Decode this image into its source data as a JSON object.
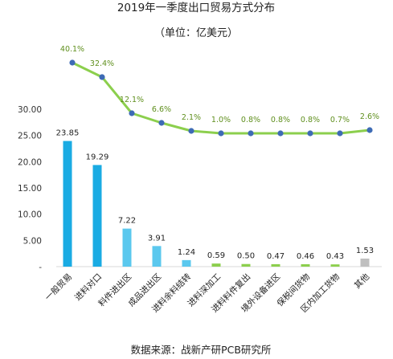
{
  "chart_data": {
    "type": "bar",
    "title": "2019年一季度出口贸易方式分布",
    "subtitle": "（单位：亿美元）",
    "source": "数据来源：战新产研PCB研究所",
    "ylim": [
      0,
      30
    ],
    "yticks": [
      "30.00",
      "25.00",
      "20.00",
      "15.00",
      "10.00",
      "5.00",
      "-"
    ],
    "categories": [
      "一般贸易",
      "进料对口",
      "料件进出区",
      "成品进出区",
      "进料余料结转",
      "进料深加工",
      "进料料件复出",
      "境外设备进区",
      "保税间货物",
      "区内加工货物",
      "其他"
    ],
    "values": [
      23.85,
      19.29,
      7.22,
      3.91,
      1.24,
      0.59,
      0.5,
      0.47,
      0.46,
      0.43,
      1.53
    ],
    "value_labels": [
      "23.85",
      "19.29",
      "7.22",
      "3.91",
      "1.24",
      "0.59",
      "0.50",
      "0.47",
      "0.46",
      "0.43",
      "1.53"
    ],
    "share_line": {
      "values": [
        40.1,
        32.4,
        12.1,
        6.6,
        2.1,
        1.0,
        0.8,
        0.8,
        0.8,
        0.7,
        2.6
      ],
      "labels": [
        "40.1%",
        "32.4%",
        "12.1%",
        "6.6%",
        "2.1%",
        "1.0%",
        "0.8%",
        "0.8%",
        "0.8%",
        "0.7%",
        "2.6%"
      ]
    },
    "colors": {
      "bar_dark": "#1aabe3",
      "bar_light": "#5bc8ee",
      "bar_green": "#8ccf4d",
      "bar_gray": "#bfbfbf",
      "line": "#8ccf4d",
      "marker": "#3e6bb5",
      "pct_text": "#5f8f1d"
    },
    "bar_color_keys": [
      "bar_dark",
      "bar_dark",
      "bar_light",
      "bar_light",
      "bar_light",
      "bar_green",
      "bar_green",
      "bar_green",
      "bar_green",
      "bar_green",
      "bar_gray"
    ]
  }
}
